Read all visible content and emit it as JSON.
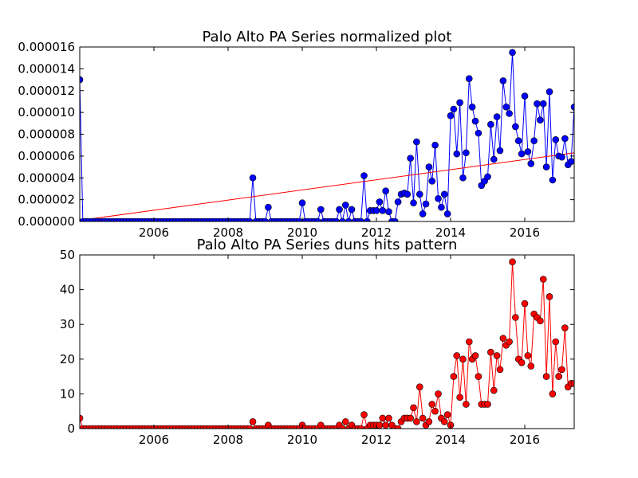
{
  "chart_data": [
    {
      "type": "line",
      "title": "Palo Alto PA Series normalized plot",
      "color": "#0000ff",
      "x": [
        2004,
        2004.083,
        2004.167,
        2004.25,
        2004.333,
        2004.417,
        2004.5,
        2004.583,
        2004.667,
        2004.75,
        2004.833,
        2004.917,
        2005,
        2005.083,
        2005.167,
        2005.25,
        2005.333,
        2005.417,
        2005.5,
        2005.583,
        2005.667,
        2005.75,
        2005.833,
        2005.917,
        2006,
        2006.083,
        2006.167,
        2006.25,
        2006.333,
        2006.417,
        2006.5,
        2006.583,
        2006.667,
        2006.75,
        2006.833,
        2006.917,
        2007,
        2007.083,
        2007.167,
        2007.25,
        2007.333,
        2007.417,
        2007.5,
        2007.583,
        2007.667,
        2007.75,
        2007.833,
        2007.917,
        2008,
        2008.083,
        2008.167,
        2008.25,
        2008.333,
        2008.417,
        2008.5,
        2008.583,
        2008.667,
        2008.75,
        2008.833,
        2008.917,
        2009,
        2009.083,
        2009.167,
        2009.25,
        2009.333,
        2009.417,
        2009.5,
        2009.583,
        2009.667,
        2009.75,
        2009.833,
        2009.917,
        2010,
        2010.083,
        2010.167,
        2010.25,
        2010.333,
        2010.417,
        2010.5,
        2010.583,
        2010.667,
        2010.75,
        2010.833,
        2010.917,
        2011,
        2011.083,
        2011.167,
        2011.25,
        2011.333,
        2011.417,
        2011.5,
        2011.583,
        2011.667,
        2011.75,
        2011.833,
        2011.917,
        2012,
        2012.083,
        2012.167,
        2012.25,
        2012.333,
        2012.417,
        2012.5,
        2012.583,
        2012.667,
        2012.75,
        2012.833,
        2012.917,
        2013,
        2013.083,
        2013.167,
        2013.25,
        2013.333,
        2013.417,
        2013.5,
        2013.583,
        2013.667,
        2013.75,
        2013.833,
        2013.917,
        2014,
        2014.083,
        2014.167,
        2014.25,
        2014.333,
        2014.417,
        2014.5,
        2014.583,
        2014.667,
        2014.75,
        2014.833,
        2014.917,
        2015,
        2015.083,
        2015.167,
        2015.25,
        2015.333,
        2015.417,
        2015.5,
        2015.583,
        2015.667,
        2015.75,
        2015.833,
        2015.917,
        2016,
        2016.083,
        2016.167,
        2016.25,
        2016.333,
        2016.417,
        2016.5,
        2016.583,
        2016.667,
        2016.75,
        2016.833,
        2016.917,
        2017,
        2017.083,
        2017.167,
        2017.25,
        2017.333
      ],
      "values": [
        1.3e-05,
        0,
        0,
        0,
        0,
        0,
        0,
        0,
        0,
        0,
        0,
        0,
        0,
        0,
        0,
        0,
        0,
        0,
        0,
        0,
        0,
        0,
        0,
        0,
        0,
        0,
        0,
        0,
        0,
        0,
        0,
        0,
        0,
        0,
        0,
        0,
        0,
        0,
        0,
        0,
        0,
        0,
        0,
        0,
        0,
        0,
        0,
        0,
        0,
        0,
        0,
        0,
        0,
        0,
        0,
        0,
        4e-06,
        0,
        0,
        0,
        0,
        1.3e-06,
        0,
        0,
        0,
        0,
        0,
        0,
        0,
        0,
        0,
        0,
        1.7e-06,
        0,
        0,
        0,
        0,
        0,
        1.1e-06,
        0,
        0,
        0,
        0,
        0,
        1.1e-06,
        0,
        1.5e-06,
        0,
        1.1e-06,
        0,
        0,
        0,
        4.2e-06,
        0,
        1e-06,
        1e-06,
        1e-06,
        1.8e-06,
        1e-06,
        2.8e-06,
        9e-07,
        0,
        0,
        1.8e-06,
        2.5e-06,
        2.6e-06,
        2.5e-06,
        5.8e-06,
        1.7e-06,
        7.3e-06,
        2.5e-06,
        7e-07,
        1.6e-06,
        5e-06,
        3.7e-06,
        7e-06,
        2.1e-06,
        1.3e-06,
        2.5e-06,
        7e-07,
        9.7e-06,
        1.03e-05,
        6.2e-06,
        1.09e-05,
        4e-06,
        6.3e-06,
        1.31e-05,
        1.05e-05,
        9.2e-06,
        8.1e-06,
        3.3e-06,
        3.7e-06,
        4.1e-06,
        8.9e-06,
        5.7e-06,
        9.6e-06,
        6.5e-06,
        1.29e-05,
        1.05e-05,
        9.9e-06,
        1.55e-05,
        8.7e-06,
        7.4e-06,
        6.2e-06,
        1.15e-05,
        6.4e-06,
        5.3e-06,
        7.4e-06,
        1.08e-05,
        9.3e-06,
        1.08e-05,
        5e-06,
        1.19e-05,
        3.8e-06,
        7.5e-06,
        6e-06,
        5.9e-06,
        7.6e-06,
        5.2e-06,
        5.5e-06,
        1.05e-05
      ],
      "trend_line": {
        "color": "#ff0000",
        "values": [
          1e-07,
          6.3e-06
        ]
      },
      "xlim": [
        2004,
        2017.333
      ],
      "xticks": [
        2006,
        2008,
        2010,
        2012,
        2014,
        2016
      ],
      "ylim": [
        0,
        1.6e-05
      ],
      "yticks": [
        {
          "value": 0,
          "label": "0.000000"
        },
        {
          "value": 2e-06,
          "label": "0.000002"
        },
        {
          "value": 4e-06,
          "label": "0.000004"
        },
        {
          "value": 6e-06,
          "label": "0.000006"
        },
        {
          "value": 8e-06,
          "label": "0.000008"
        },
        {
          "value": 1e-05,
          "label": "0.000010"
        },
        {
          "value": 1.2e-05,
          "label": "0.000012"
        },
        {
          "value": 1.4e-05,
          "label": "0.000014"
        },
        {
          "value": 1.6e-05,
          "label": "0.000016"
        }
      ]
    },
    {
      "type": "line",
      "title": "Palo Alto PA Series duns hits pattern",
      "color": "#ff0000",
      "x": [
        2004,
        2004.083,
        2004.167,
        2004.25,
        2004.333,
        2004.417,
        2004.5,
        2004.583,
        2004.667,
        2004.75,
        2004.833,
        2004.917,
        2005,
        2005.083,
        2005.167,
        2005.25,
        2005.333,
        2005.417,
        2005.5,
        2005.583,
        2005.667,
        2005.75,
        2005.833,
        2005.917,
        2006,
        2006.083,
        2006.167,
        2006.25,
        2006.333,
        2006.417,
        2006.5,
        2006.583,
        2006.667,
        2006.75,
        2006.833,
        2006.917,
        2007,
        2007.083,
        2007.167,
        2007.25,
        2007.333,
        2007.417,
        2007.5,
        2007.583,
        2007.667,
        2007.75,
        2007.833,
        2007.917,
        2008,
        2008.083,
        2008.167,
        2008.25,
        2008.333,
        2008.417,
        2008.5,
        2008.583,
        2008.667,
        2008.75,
        2008.833,
        2008.917,
        2009,
        2009.083,
        2009.167,
        2009.25,
        2009.333,
        2009.417,
        2009.5,
        2009.583,
        2009.667,
        2009.75,
        2009.833,
        2009.917,
        2010,
        2010.083,
        2010.167,
        2010.25,
        2010.333,
        2010.417,
        2010.5,
        2010.583,
        2010.667,
        2010.75,
        2010.833,
        2010.917,
        2011,
        2011.083,
        2011.167,
        2011.25,
        2011.333,
        2011.417,
        2011.5,
        2011.583,
        2011.667,
        2011.75,
        2011.833,
        2011.917,
        2012,
        2012.083,
        2012.167,
        2012.25,
        2012.333,
        2012.417,
        2012.5,
        2012.583,
        2012.667,
        2012.75,
        2012.833,
        2012.917,
        2013,
        2013.083,
        2013.167,
        2013.25,
        2013.333,
        2013.417,
        2013.5,
        2013.583,
        2013.667,
        2013.75,
        2013.833,
        2013.917,
        2014,
        2014.083,
        2014.167,
        2014.25,
        2014.333,
        2014.417,
        2014.5,
        2014.583,
        2014.667,
        2014.75,
        2014.833,
        2014.917,
        2015,
        2015.083,
        2015.167,
        2015.25,
        2015.333,
        2015.417,
        2015.5,
        2015.583,
        2015.667,
        2015.75,
        2015.833,
        2015.917,
        2016,
        2016.083,
        2016.167,
        2016.25,
        2016.333,
        2016.417,
        2016.5,
        2016.583,
        2016.667,
        2016.75,
        2016.833,
        2016.917,
        2017,
        2017.083,
        2017.167,
        2017.25,
        2017.333
      ],
      "values": [
        3,
        0,
        0,
        0,
        0,
        0,
        0,
        0,
        0,
        0,
        0,
        0,
        0,
        0,
        0,
        0,
        0,
        0,
        0,
        0,
        0,
        0,
        0,
        0,
        0,
        0,
        0,
        0,
        0,
        0,
        0,
        0,
        0,
        0,
        0,
        0,
        0,
        0,
        0,
        0,
        0,
        0,
        0,
        0,
        0,
        0,
        0,
        0,
        0,
        0,
        0,
        0,
        0,
        0,
        0,
        0,
        2,
        0,
        0,
        0,
        0,
        1,
        0,
        0,
        0,
        0,
        0,
        0,
        0,
        0,
        0,
        0,
        1,
        0,
        0,
        0,
        0,
        0,
        1,
        0,
        0,
        0,
        0,
        0,
        1,
        0,
        2,
        0,
        1,
        0,
        0,
        0,
        4,
        0,
        1,
        1,
        1,
        1,
        3,
        1,
        3,
        1,
        0,
        0,
        2,
        3,
        3,
        3,
        6,
        2,
        12,
        3,
        1,
        2,
        7,
        5,
        10,
        3,
        2,
        4,
        1,
        15,
        21,
        9,
        20,
        7,
        25,
        20,
        21,
        15,
        7,
        7,
        7,
        22,
        11,
        21,
        17,
        26,
        24,
        25,
        48,
        32,
        20,
        19,
        36,
        21,
        18,
        33,
        32,
        31,
        43,
        15,
        38,
        10,
        25,
        15,
        17,
        29,
        12,
        13,
        13
      ],
      "xlim": [
        2004,
        2017.333
      ],
      "xticks": [
        2006,
        2008,
        2010,
        2012,
        2014,
        2016
      ],
      "ylim": [
        0,
        50
      ],
      "yticks": [
        0,
        10,
        20,
        30,
        40,
        50
      ]
    }
  ]
}
